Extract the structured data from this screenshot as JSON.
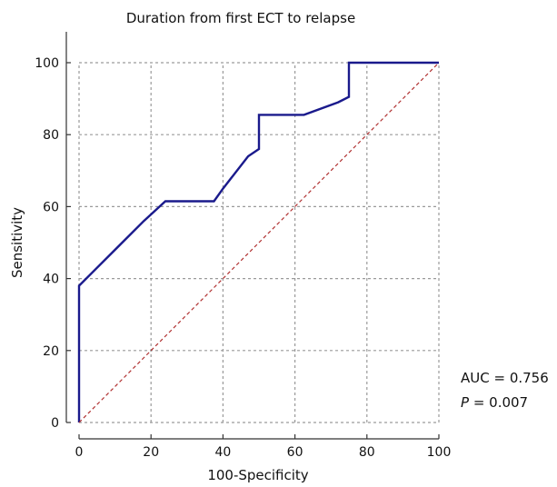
{
  "chart_data": {
    "type": "line",
    "title": "Duration from first ECT to relapse",
    "xlabel": "100-Specificity",
    "ylabel": "Sensitivity",
    "xlim": [
      0,
      100
    ],
    "ylim": [
      0,
      100
    ],
    "xticks": [
      0,
      20,
      40,
      60,
      80,
      100
    ],
    "yticks": [
      0,
      20,
      40,
      60,
      80,
      100
    ],
    "grid": true,
    "series": [
      {
        "color": "#1a1a8c",
        "x": [
          0,
          0,
          5,
          13,
          18,
          24,
          37.5,
          40,
          47,
          50,
          50,
          62.5,
          72,
          75,
          75,
          100
        ],
        "y": [
          0,
          38,
          43,
          51,
          56,
          61.5,
          61.5,
          65,
          74,
          76,
          85.5,
          85.5,
          89,
          90.5,
          100,
          100
        ]
      },
      {
        "color": "#b03030",
        "style": "dashed",
        "x": [
          0,
          100
        ],
        "y": [
          0,
          100
        ]
      }
    ],
    "annotations": {
      "auc_text": "AUC = 0.756",
      "p_symbol": "P",
      "p_value": " = 0.007"
    }
  }
}
